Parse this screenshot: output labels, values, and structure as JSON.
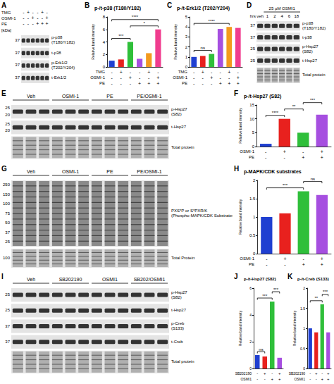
{
  "chart_data": [
    {
      "type": "bar",
      "panel": "B",
      "title": "p-/t-p38 (T180/Y182)",
      "y_label": "Relative band intensity",
      "conditions": [
        {
          "name": "TMG",
          "values": [
            "-",
            "+",
            "-",
            "-",
            "+",
            "-"
          ]
        },
        {
          "name": "OSMI-1",
          "values": [
            "-",
            "-",
            "+",
            "-",
            "-",
            "+"
          ]
        },
        {
          "name": "PE",
          "values": [
            "-",
            "-",
            "-",
            "+",
            "+",
            "+"
          ]
        }
      ],
      "values": [
        1,
        1.2,
        4,
        1.3,
        2.2,
        6
      ],
      "colors": [
        "#1f3fd1",
        "#e8211e",
        "#2fbf3a",
        "#a64fe0",
        "#f39a1d",
        "#f03c8e"
      ],
      "ylim": [
        0,
        8
      ],
      "yticks": [
        0,
        2,
        4,
        6,
        8
      ],
      "grid": false,
      "significance": [
        {
          "from": 0,
          "to": 2,
          "label": "***"
        },
        {
          "from": 2,
          "to": 5,
          "label": "*"
        },
        {
          "from": 0,
          "to": 5,
          "label": "****"
        }
      ]
    },
    {
      "type": "bar",
      "panel": "C",
      "title": "p-/t-Erk1/2 (T202/Y204)",
      "y_label": "Relative band intensity",
      "conditions": [
        {
          "name": "TMG",
          "values": [
            "-",
            "+",
            "-",
            "-",
            "+",
            "-"
          ]
        },
        {
          "name": "OSMI-1",
          "values": [
            "-",
            "-",
            "+",
            "-",
            "-",
            "+"
          ]
        },
        {
          "name": "PE",
          "values": [
            "-",
            "-",
            "-",
            "+",
            "+",
            "+"
          ]
        }
      ],
      "values": [
        1,
        1.1,
        1.3,
        3.8,
        4.0,
        3.9
      ],
      "colors": [
        "#1f3fd1",
        "#e8211e",
        "#2fbf3a",
        "#a64fe0",
        "#f39a1d",
        "#f03c8e"
      ],
      "ylim": [
        0,
        5
      ],
      "yticks": [
        0,
        1,
        2,
        3,
        4,
        5
      ],
      "grid": false,
      "significance": [
        {
          "from": 0,
          "to": 2,
          "label": "ns"
        },
        {
          "from": 0,
          "to": 4,
          "label": "****"
        }
      ]
    },
    {
      "type": "bar",
      "panel": "F",
      "title": "p-/t-Hsp27 (S82)",
      "y_label": "Relative band intensity",
      "conditions": [
        {
          "name": "OSMI-1",
          "values": [
            "-",
            "+",
            "-",
            "+"
          ]
        },
        {
          "name": "PE",
          "values": [
            "-",
            "-",
            "+",
            "+"
          ]
        }
      ],
      "values": [
        1,
        10,
        5,
        11.5
      ],
      "colors": [
        "#1f3fd1",
        "#e8211e",
        "#2fbf3a",
        "#a64fe0"
      ],
      "ylim": [
        0,
        15
      ],
      "yticks": [
        0,
        5,
        10,
        15
      ],
      "grid": false,
      "significance": [
        {
          "from": 0,
          "to": 1,
          "label": "****"
        },
        {
          "from": 1,
          "to": 2,
          "label": "**"
        },
        {
          "from": 2,
          "to": 3,
          "label": "***"
        }
      ]
    },
    {
      "type": "bar",
      "panel": "H",
      "title": "p-MAPK/CDK substrates",
      "y_label": "Relative band intensity",
      "conditions": [
        {
          "name": "OSMI-1",
          "values": [
            "-",
            "+",
            "-",
            "+"
          ]
        },
        {
          "name": "PE",
          "values": [
            "-",
            "-",
            "+",
            "+"
          ]
        }
      ],
      "values": [
        1,
        1.1,
        1.7,
        1.6
      ],
      "colors": [
        "#1f3fd1",
        "#e8211e",
        "#2fbf3a",
        "#a64fe0"
      ],
      "ylim": [
        0,
        2
      ],
      "yticks": [
        0,
        0.5,
        1,
        1.5,
        2
      ],
      "grid": false,
      "significance": [
        {
          "from": 0,
          "to": 2,
          "label": "***"
        },
        {
          "from": 2,
          "to": 3,
          "label": "ns"
        }
      ]
    },
    {
      "type": "bar",
      "panel": "J",
      "title": "p-/t-Hsp27 (S82)",
      "y_label": "Relative band intensity",
      "conditions": [
        {
          "name": "SB202190",
          "values": [
            "-",
            "+",
            "-",
            "+"
          ]
        },
        {
          "name": "OSMI1",
          "values": [
            "-",
            "-",
            "+",
            "+"
          ]
        }
      ],
      "values": [
        1,
        0.9,
        5,
        0.8
      ],
      "colors": [
        "#1f3fd1",
        "#e8211e",
        "#2fbf3a",
        "#a64fe0"
      ],
      "ylim": [
        0,
        6
      ],
      "yticks": [
        0,
        2,
        4,
        6
      ],
      "grid": false,
      "significance": [
        {
          "from": 0,
          "to": 1,
          "label": "ns"
        },
        {
          "from": 0,
          "to": 2,
          "label": "***"
        },
        {
          "from": 2,
          "to": 3,
          "label": "***"
        }
      ]
    },
    {
      "type": "bar",
      "panel": "K",
      "title": "p-/t-Creb (S133)",
      "y_label": "Relative band intensity",
      "conditions": [
        {
          "name": "SB202190",
          "values": [
            "-",
            "+",
            "-",
            "+"
          ]
        },
        {
          "name": "OSMI1",
          "values": [
            "-",
            "-",
            "+",
            "+"
          ]
        }
      ],
      "values": [
        1,
        0.9,
        1.6,
        0.9
      ],
      "colors": [
        "#1f3fd1",
        "#e8211e",
        "#2fbf3a",
        "#a64fe0"
      ],
      "ylim": [
        0,
        2
      ],
      "yticks": [
        0,
        0.5,
        1,
        1.5,
        2
      ],
      "grid": false,
      "significance": [
        {
          "from": 0,
          "to": 2,
          "label": "**"
        },
        {
          "from": 2,
          "to": 3,
          "label": "***"
        }
      ]
    }
  ],
  "blots": [
    {
      "panel": "A",
      "header_rows": [
        {
          "name": "TMG",
          "values": [
            "-",
            "+",
            "-",
            "-",
            "+",
            "-"
          ]
        },
        {
          "name": "OSMI-1",
          "values": [
            "-",
            "-",
            "+",
            "-",
            "-",
            "+"
          ]
        },
        {
          "name": "PE",
          "values": [
            "-",
            "-",
            "-",
            "+",
            "+",
            "+"
          ]
        }
      ],
      "kda_label": "[kDa]",
      "bands": [
        {
          "label": "p-p38 (T180/Y182)",
          "kda": [
            37
          ]
        },
        {
          "label": "t-p38",
          "kda": [
            37
          ]
        },
        {
          "label": "p-Erk1/2 (T202/Y204)",
          "kda": [
            37
          ]
        },
        {
          "label": "t-Erk1/2",
          "kda": [
            37
          ]
        }
      ]
    },
    {
      "panel": "D",
      "title": "25 µM OSMI1",
      "time_label": "hrs",
      "lanes": [
        "veh",
        "1",
        "2",
        "4",
        "6",
        "18"
      ],
      "bands": [
        {
          "label": "p-p38 (T180/Y182)",
          "kda": [
            37
          ]
        },
        {
          "label": "t-p38",
          "kda": [
            37
          ]
        },
        {
          "label": "p-Hsp27 (S82)",
          "kda": [
            25
          ]
        },
        {
          "label": "t-Hsp27",
          "kda": [
            25
          ]
        },
        {
          "label": "Total protein",
          "kda": []
        }
      ]
    },
    {
      "panel": "E",
      "groups": [
        "Veh",
        "OSMI-1",
        "PE",
        "PE/OSMI-1"
      ],
      "bands": [
        {
          "label": "p-Hsp27 (S82)",
          "kda": [
            25,
            20
          ]
        },
        {
          "label": "t-Hsp27",
          "kda": [
            25,
            20
          ]
        },
        {
          "label": "Total protein",
          "kda": []
        }
      ]
    },
    {
      "panel": "G",
      "groups": [
        "Veh",
        "OSMI-1",
        "PE",
        "PE/OSMI-1"
      ],
      "bands": [
        {
          "label": "PXS*P or S*PXR/K (Phospho-MAPK/CDK Substrates)",
          "kda": [
            250,
            150,
            100,
            75,
            50,
            37,
            25
          ]
        },
        {
          "label": "Total Protein",
          "kda": [
            100
          ]
        }
      ]
    },
    {
      "panel": "I",
      "groups": [
        "Veh",
        "SB202190",
        "OSMI1",
        "SB202/OSMI1"
      ],
      "bands": [
        {
          "label": "p-Hsp27 (S82)",
          "kda": [
            25
          ]
        },
        {
          "label": "t-Hsp27",
          "kda": [
            25
          ]
        },
        {
          "label": "p-Creb (S133)",
          "kda": [
            37
          ]
        },
        {
          "label": "t-Creb",
          "kda": [
            37
          ]
        },
        {
          "label": "Total protein",
          "kda": []
        }
      ]
    }
  ]
}
